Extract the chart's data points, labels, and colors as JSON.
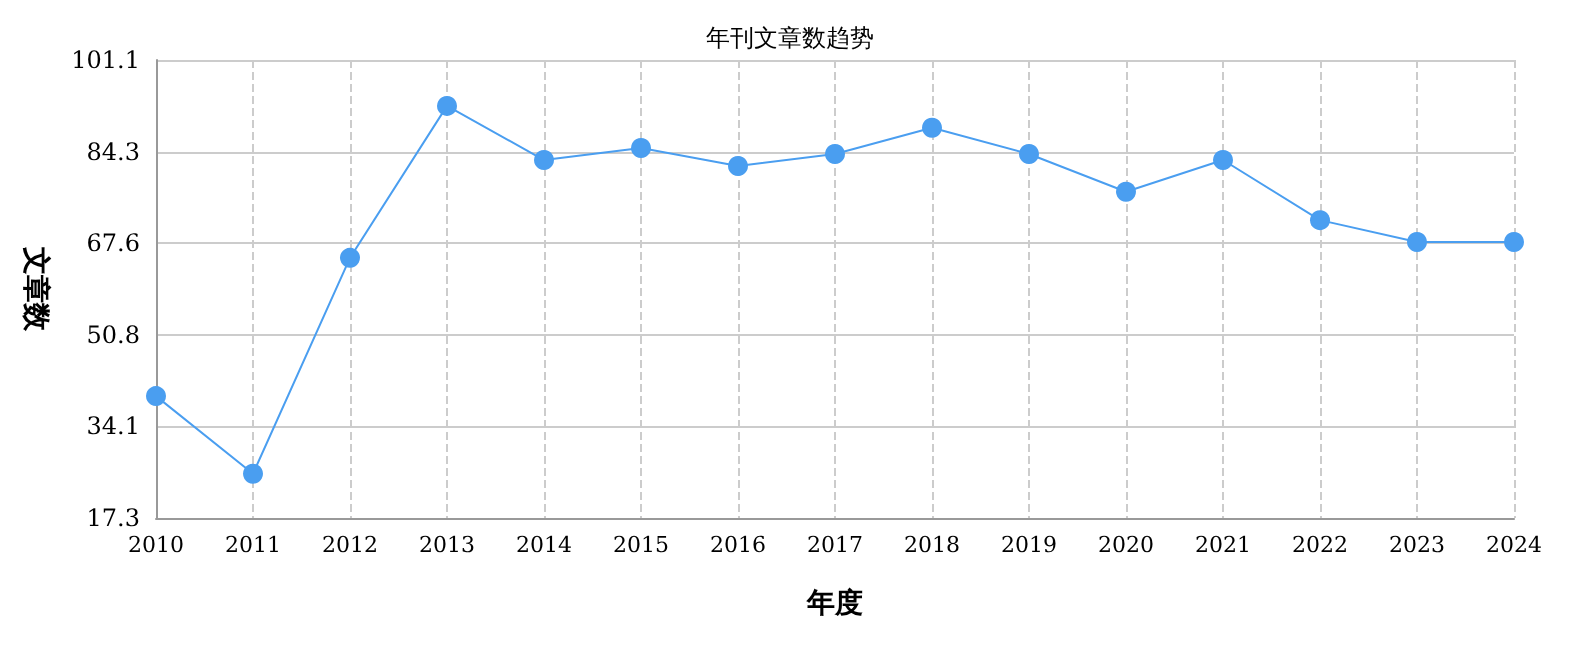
{
  "chart_data": {
    "type": "line",
    "title": "年刊文章数趋势",
    "xlabel": "年度",
    "ylabel": "文章数",
    "categories": [
      "2010",
      "2011",
      "2012",
      "2013",
      "2014",
      "2015",
      "2016",
      "2017",
      "2018",
      "2019",
      "2020",
      "2021",
      "2022",
      "2023",
      "2024"
    ],
    "series": [
      {
        "color": "#4a9ef0",
        "values": [
          39.6,
          25.4,
          64.9,
          92.7,
          82.8,
          85.0,
          81.7,
          83.9,
          88.7,
          83.9,
          77.0,
          82.8,
          71.8,
          67.8,
          67.8
        ]
      }
    ],
    "ylim": [
      17.3,
      101.1
    ],
    "yticks": [
      17.3,
      34.1,
      50.8,
      67.6,
      84.3,
      101.1
    ],
    "grid": true,
    "marker": "circle",
    "line_style": "solid"
  }
}
